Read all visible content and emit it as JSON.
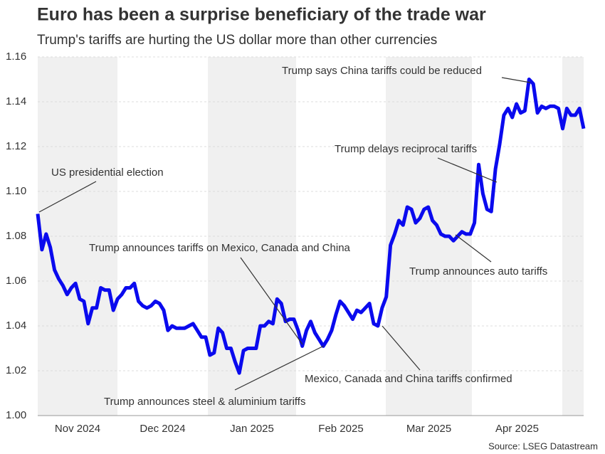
{
  "chart_data": {
    "type": "line",
    "title": "Euro has been a surprise beneficiary of the trade war",
    "subtitle": "Trump's tariffs are hurting the US dollar more than other currencies",
    "source": "Source: LSEG Datastream",
    "months": [
      "Nov 2024",
      "Dec 2024",
      "Jan 2025",
      "Feb 2025",
      "Mar 2025",
      "Apr 2025"
    ],
    "ylim": [
      1.0,
      1.16
    ],
    "yticks": [
      {
        "value": 1.0,
        "label": "1.00"
      },
      1.02,
      1.04,
      1.06,
      1.08,
      {
        "value": 1.1,
        "label": "1.10"
      },
      1.12,
      1.14,
      1.16
    ],
    "grid": true,
    "series": [
      {
        "color": "#0a0aee",
        "values": [
          1.09,
          1.074,
          1.081,
          1.075,
          1.065,
          1.061,
          1.058,
          1.054,
          1.057,
          1.059,
          1.052,
          1.051,
          1.041,
          1.048,
          1.048,
          1.057,
          1.056,
          1.056,
          1.047,
          1.052,
          1.054,
          1.057,
          1.057,
          1.059,
          1.051,
          1.049,
          1.048,
          1.049,
          1.051,
          1.05,
          1.047,
          1.038,
          1.04,
          1.039,
          1.039,
          1.039,
          1.04,
          1.041,
          1.038,
          1.035,
          1.035,
          1.027,
          1.028,
          1.039,
          1.037,
          1.03,
          1.03,
          1.024,
          1.019,
          1.029,
          1.03,
          1.03,
          1.03,
          1.04,
          1.04,
          1.042,
          1.041,
          1.052,
          1.05,
          1.042,
          1.043,
          1.043,
          1.038,
          1.031,
          1.038,
          1.042,
          1.037,
          1.034,
          1.031,
          1.034,
          1.038,
          1.045,
          1.051,
          1.049,
          1.046,
          1.043,
          1.047,
          1.046,
          1.048,
          1.05,
          1.041,
          1.04,
          1.048,
          1.053,
          1.076,
          1.081,
          1.087,
          1.085,
          1.093,
          1.092,
          1.086,
          1.088,
          1.092,
          1.093,
          1.087,
          1.085,
          1.081,
          1.08,
          1.08,
          1.078,
          1.08,
          1.082,
          1.081,
          1.081,
          1.086,
          1.112,
          1.099,
          1.092,
          1.091,
          1.11,
          1.121,
          1.134,
          1.137,
          1.133,
          1.139,
          1.135,
          1.136,
          1.15,
          1.148,
          1.135,
          1.138,
          1.137,
          1.138,
          1.138,
          1.137,
          1.128,
          1.137,
          1.134,
          1.134,
          1.137,
          1.128
        ]
      }
    ],
    "annotations": [
      "US presidential election",
      "Trump announces tariffs on Mexico, Canada and China",
      "Trump announces steel & aluminium tariffs",
      "Mexico, Canada and China tariffs confirmed",
      "Trump announces auto tariffs",
      "Trump delays reciprocal tariffs",
      "Trump says China tariffs could be reduced"
    ]
  }
}
